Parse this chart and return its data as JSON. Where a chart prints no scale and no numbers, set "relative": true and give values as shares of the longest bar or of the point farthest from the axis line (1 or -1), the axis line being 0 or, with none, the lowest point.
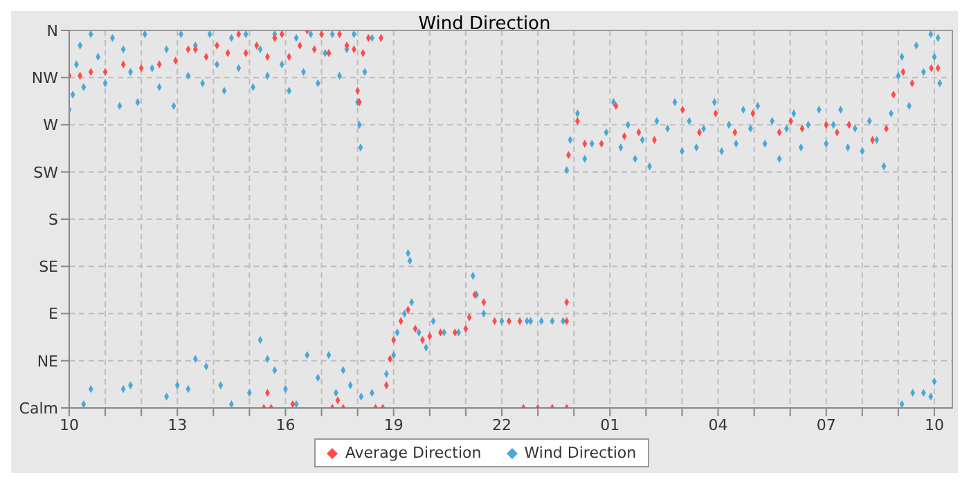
{
  "chart_data": {
    "type": "scatter",
    "title": "Wind Direction",
    "xlim": [
      "--01-01T10:00",
      "--01-02T10:30"
    ],
    "xticks": [
      {
        "value": "--01-01T10:00",
        "label": "10"
      },
      {
        "value": "--01-01T11:00",
        "label": null
      },
      {
        "value": "--01-01T12:00",
        "label": null
      },
      {
        "value": "--01-01T13:00",
        "label": "13"
      },
      {
        "value": "--01-01T14:00",
        "label": null
      },
      {
        "value": "--01-01T15:00",
        "label": null
      },
      {
        "value": "--01-01T16:00",
        "label": "16"
      },
      {
        "value": "--01-01T17:00",
        "label": null
      },
      {
        "value": "--01-01T18:00",
        "label": null
      },
      {
        "value": "--01-01T19:00",
        "label": "19"
      },
      {
        "value": "--01-01T20:00",
        "label": null
      },
      {
        "value": "--01-01T21:00",
        "label": null
      },
      {
        "value": "--01-01T22:00",
        "label": "22"
      },
      {
        "value": "--01-01T23:00",
        "label": null
      },
      {
        "value": "--01-02T00:00",
        "label": null
      },
      {
        "value": "--01-02T01:00",
        "label": "01"
      },
      {
        "value": "--01-02T02:00",
        "label": null
      },
      {
        "value": "--01-02T03:00",
        "label": null
      },
      {
        "value": "--01-02T04:00",
        "label": "04"
      },
      {
        "value": "--01-02T05:00",
        "label": null
      },
      {
        "value": "--01-02T06:00",
        "label": null
      },
      {
        "value": "--01-02T07:00",
        "label": "07"
      },
      {
        "value": "--01-02T08:00",
        "label": null
      },
      {
        "value": "--01-02T09:00",
        "label": null
      },
      {
        "value": "--01-02T10:00",
        "label": "10"
      }
    ],
    "y_categories": [
      "Calm",
      "NE",
      "E",
      "SE",
      "S",
      "SW",
      "W",
      "NW",
      "N"
    ],
    "relative": true,
    "grid": true,
    "legend": "bottom",
    "marker": "diamond",
    "series": [
      {
        "name": "Average Direction",
        "color": "#ff4b4b",
        "x": [
          "--01-01T10:00",
          "--01-01T10:18",
          "--01-01T10:36",
          "--01-01T11:00",
          "--01-01T11:30",
          "--01-01T12:00",
          "--01-01T12:30",
          "--01-01T12:57",
          "--01-01T13:18",
          "--01-01T13:30",
          "--01-01T13:48",
          "--01-01T14:06",
          "--01-01T14:24",
          "--01-01T14:42",
          "--01-01T14:54",
          "--01-01T15:12",
          "--01-01T15:30",
          "--01-01T15:42",
          "--01-01T15:54",
          "--01-01T16:06",
          "--01-01T16:24",
          "--01-01T16:36",
          "--01-01T16:48",
          "--01-01T17:00",
          "--01-01T17:12",
          "--01-01T17:30",
          "--01-01T17:42",
          "--01-01T17:54",
          "--01-01T18:00",
          "--01-01T18:03",
          "--01-01T18:09",
          "--01-01T18:18",
          "--01-01T18:39",
          "--01-01T15:24",
          "--01-01T15:30",
          "--01-01T15:36",
          "--01-01T16:12",
          "--01-01T17:18",
          "--01-01T17:27",
          "--01-01T17:36",
          "--01-01T18:30",
          "--01-01T18:42",
          "--01-01T18:48",
          "--01-01T18:54",
          "--01-01T19:00",
          "--01-01T19:12",
          "--01-01T19:24",
          "--01-01T19:36",
          "--01-01T19:48",
          "--01-01T20:00",
          "--01-01T20:18",
          "--01-01T20:42",
          "--01-01T21:00",
          "--01-01T21:06",
          "--01-01T21:15",
          "--01-01T21:30",
          "--01-01T21:48",
          "--01-01T22:12",
          "--01-01T22:30",
          "--01-01T22:36",
          "--01-01T23:00",
          "--01-01T23:24",
          "--01-01T23:48",
          "--01-01T23:48",
          "--01-01T23:48",
          "--01-01T23:51",
          "--01-02T00:06",
          "--01-02T00:18",
          "--01-02T00:46",
          "--01-02T01:10",
          "--01-02T01:24",
          "--01-02T01:48",
          "--01-02T02:14",
          "--01-02T03:01",
          "--01-02T03:29",
          "--01-02T03:56",
          "--01-02T04:28",
          "--01-02T04:58",
          "--01-02T05:42",
          "--01-02T06:01",
          "--01-02T06:20",
          "--01-02T07:00",
          "--01-02T07:18",
          "--01-02T07:38",
          "--01-02T08:17",
          "--01-02T08:40",
          "--01-02T08:52",
          "--01-02T09:08",
          "--01-02T09:23",
          "--01-02T09:55",
          "--01-02T10:06"
        ],
        "values": [
          0.88,
          0.88,
          0.89,
          0.89,
          0.91,
          0.9,
          0.91,
          0.92,
          0.95,
          0.95,
          0.93,
          0.96,
          0.94,
          0.99,
          0.94,
          0.96,
          0.93,
          0.98,
          0.99,
          0.93,
          0.96,
          1,
          0.95,
          0.99,
          0.94,
          0.99,
          0.96,
          0.95,
          0.84,
          0.81,
          0.94,
          0.98,
          0.98,
          0,
          0.04,
          0,
          0.01,
          0,
          0.02,
          0,
          0,
          0,
          0.06,
          0.13,
          0.18,
          0.23,
          0.26,
          0.21,
          0.18,
          0.19,
          0.2,
          0.2,
          0.21,
          0.24,
          0.3,
          0.28,
          0.23,
          0.23,
          0.23,
          0,
          0,
          0,
          0,
          0.23,
          0.28,
          0.67,
          0.76,
          0.7,
          0.7,
          0.8,
          0.72,
          0.73,
          0.71,
          0.79,
          0.73,
          0.78,
          0.73,
          0.78,
          0.73,
          0.76,
          0.74,
          0.75,
          0.73,
          0.75,
          0.71,
          0.74,
          0.83,
          0.89,
          0.86,
          0.9,
          0.9
        ]
      },
      {
        "name": "Wind Direction",
        "color": "#4aa8d8",
        "x": [
          "--01-01T10:00",
          "--01-01T10:06",
          "--01-01T10:12",
          "--01-01T10:18",
          "--01-01T10:24",
          "--01-01T10:36",
          "--01-01T10:48",
          "--01-01T11:00",
          "--01-01T11:12",
          "--01-01T11:24",
          "--01-01T11:30",
          "--01-01T11:42",
          "--01-01T11:54",
          "--01-01T12:06",
          "--01-01T12:18",
          "--01-01T12:30",
          "--01-01T12:42",
          "--01-01T12:54",
          "--01-01T13:06",
          "--01-01T13:18",
          "--01-01T13:30",
          "--01-01T13:42",
          "--01-01T13:54",
          "--01-01T14:06",
          "--01-01T14:18",
          "--01-01T14:30",
          "--01-01T14:42",
          "--01-01T14:54",
          "--01-01T15:06",
          "--01-01T15:18",
          "--01-01T15:30",
          "--01-01T15:42",
          "--01-01T15:54",
          "--01-01T16:06",
          "--01-01T16:18",
          "--01-01T16:30",
          "--01-01T16:42",
          "--01-01T16:54",
          "--01-01T17:06",
          "--01-01T17:18",
          "--01-01T17:30",
          "--01-01T17:42",
          "--01-01T17:54",
          "--01-01T18:00",
          "--01-01T18:03",
          "--01-01T18:05",
          "--01-01T18:12",
          "--01-01T18:24",
          "--01-01T10:24",
          "--01-01T10:36",
          "--01-01T11:30",
          "--01-01T11:42",
          "--01-01T12:42",
          "--01-01T13:00",
          "--01-01T13:18",
          "--01-01T13:30",
          "--01-01T13:48",
          "--01-01T14:12",
          "--01-01T14:30",
          "--01-01T15:00",
          "--01-01T15:18",
          "--01-01T15:30",
          "--01-01T15:42",
          "--01-01T16:00",
          "--01-01T16:18",
          "--01-01T16:36",
          "--01-01T16:54",
          "--01-01T17:12",
          "--01-01T17:24",
          "--01-01T17:36",
          "--01-01T17:48",
          "--01-01T18:06",
          "--01-01T18:24",
          "--01-01T18:48",
          "--01-01T19:00",
          "--01-01T19:06",
          "--01-01T19:18",
          "--01-01T19:24",
          "--01-01T19:27",
          "--01-01T19:30",
          "--01-01T19:42",
          "--01-01T19:54",
          "--01-01T20:06",
          "--01-01T20:24",
          "--01-01T20:48",
          "--01-01T21:12",
          "--01-01T21:18",
          "--01-01T21:30",
          "--01-01T22:00",
          "--01-01T22:42",
          "--01-01T22:48",
          "--01-01T23:06",
          "--01-01T23:24",
          "--01-01T23:42",
          "--01-01T23:48",
          "--01-01T23:54",
          "--01-02T00:06",
          "--01-02T00:18",
          "--01-02T00:30",
          "--01-02T00:54",
          "--01-02T01:06",
          "--01-02T01:18",
          "--01-02T01:30",
          "--01-02T01:42",
          "--01-02T01:54",
          "--01-02T02:06",
          "--01-02T02:18",
          "--01-02T02:36",
          "--01-02T02:48",
          "--01-02T03:00",
          "--01-02T03:12",
          "--01-02T03:24",
          "--01-02T03:36",
          "--01-02T03:54",
          "--01-02T04:06",
          "--01-02T04:18",
          "--01-02T04:30",
          "--01-02T04:42",
          "--01-02T04:54",
          "--01-02T05:06",
          "--01-02T05:18",
          "--01-02T05:30",
          "--01-02T05:42",
          "--01-02T05:54",
          "--01-02T06:06",
          "--01-02T06:18",
          "--01-02T06:30",
          "--01-02T06:48",
          "--01-02T07:00",
          "--01-02T07:12",
          "--01-02T07:24",
          "--01-02T07:36",
          "--01-02T07:48",
          "--01-02T08:00",
          "--01-02T08:12",
          "--01-02T08:24",
          "--01-02T08:36",
          "--01-02T08:48",
          "--01-02T09:00",
          "--01-02T09:06",
          "--01-02T09:18",
          "--01-02T09:30",
          "--01-02T09:42",
          "--01-02T09:54",
          "--01-02T10:00",
          "--01-02T10:06",
          "--01-02T10:09",
          "--01-02T09:06",
          "--01-02T09:24",
          "--01-02T09:42",
          "--01-02T09:54",
          "--01-02T10:00"
        ],
        "values": [
          0.79,
          0.83,
          0.91,
          0.96,
          0.85,
          0.99,
          0.93,
          0.86,
          0.98,
          0.8,
          0.95,
          0.89,
          0.81,
          0.99,
          0.9,
          0.85,
          0.95,
          0.8,
          0.99,
          0.88,
          0.96,
          0.86,
          0.99,
          0.91,
          0.84,
          0.98,
          0.9,
          0.99,
          0.85,
          0.95,
          0.88,
          0.99,
          0.91,
          0.84,
          0.98,
          0.89,
          0.99,
          0.86,
          0.94,
          0.99,
          0.88,
          0.95,
          0.99,
          0.81,
          0.75,
          0.69,
          0.89,
          0.98,
          0.01,
          0.05,
          0.05,
          0.06,
          0.03,
          0.06,
          0.05,
          0.13,
          0.11,
          0.06,
          0.01,
          0.04,
          0.18,
          0.13,
          0.1,
          0.05,
          0.01,
          0.14,
          0.08,
          0.14,
          0.04,
          0.1,
          0.06,
          0.03,
          0.04,
          0.09,
          0.14,
          0.2,
          0.25,
          0.41,
          0.39,
          0.28,
          0.2,
          0.16,
          0.23,
          0.2,
          0.2,
          0.35,
          0.3,
          0.25,
          0.23,
          0.23,
          0.23,
          0.23,
          0.23,
          0.23,
          0.63,
          0.71,
          0.78,
          0.66,
          0.7,
          0.73,
          0.81,
          0.69,
          0.75,
          0.66,
          0.71,
          0.64,
          0.76,
          0.74,
          0.81,
          0.68,
          0.76,
          0.69,
          0.74,
          0.81,
          0.68,
          0.75,
          0.7,
          0.79,
          0.74,
          0.8,
          0.7,
          0.76,
          0.66,
          0.74,
          0.78,
          0.69,
          0.75,
          0.79,
          0.7,
          0.75,
          0.79,
          0.69,
          0.74,
          0.68,
          0.76,
          0.71,
          0.64,
          0.78,
          0.88,
          0.93,
          0.8,
          0.96,
          0.89,
          0.99,
          0.93,
          0.98,
          0.86,
          0.01,
          0.04,
          0.04,
          0.03,
          0.07
        ]
      }
    ]
  }
}
